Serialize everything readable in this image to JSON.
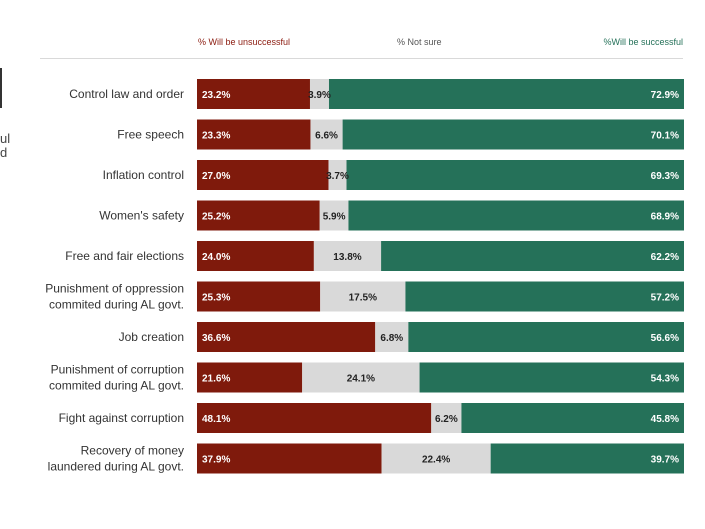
{
  "legend": {
    "unsuccessful": "% Will be unsuccessful",
    "not_sure": "% Not sure",
    "successful": "%Will be successful"
  },
  "edge_fragment": [
    "ul",
    "d"
  ],
  "colors": {
    "unsuccessful": "#7f1a0c",
    "not_sure": "#d9d9d9",
    "successful": "#257159",
    "unsuccessful_legend": "#8b1a0e",
    "successful_legend": "#257159"
  },
  "chart_data": {
    "type": "bar",
    "orientation": "horizontal",
    "stacked": true,
    "percent_of_total": true,
    "categories": [
      "Control law and order",
      "Free speech",
      "Inflation control",
      "Women's safety",
      "Free and fair elections",
      "Punishment of oppression\ncommited during AL govt.",
      "Job creation",
      "Punishment of corruption\ncommited during AL govt.",
      "Fight against corruption",
      "Recovery of money\nlaundered during AL govt."
    ],
    "series": [
      {
        "name": "% Will be unsuccessful",
        "values": [
          23.2,
          23.3,
          27.0,
          25.2,
          24.0,
          25.3,
          36.6,
          21.6,
          48.1,
          37.9
        ]
      },
      {
        "name": "% Not sure",
        "values": [
          3.9,
          6.6,
          3.7,
          5.9,
          13.8,
          17.5,
          6.8,
          24.1,
          6.2,
          22.4
        ]
      },
      {
        "name": "%Will be successful",
        "values": [
          72.9,
          70.1,
          69.3,
          68.9,
          62.2,
          57.2,
          56.6,
          54.3,
          45.8,
          39.7
        ]
      }
    ],
    "labels": [
      [
        "23.2%",
        "3.9%",
        "72.9%"
      ],
      [
        "23.3%",
        "6.6%",
        "70.1%"
      ],
      [
        "27.0%",
        "3.7%",
        "69.3%"
      ],
      [
        "25.2%",
        "5.9%",
        "68.9%"
      ],
      [
        "24.0%",
        "13.8%",
        "62.2%"
      ],
      [
        "25.3%",
        "17.5%",
        "57.2%"
      ],
      [
        "36.6%",
        "6.8%",
        "56.6%"
      ],
      [
        "21.6%",
        "24.1%",
        "54.3%"
      ],
      [
        "48.1%",
        "6.2%",
        "45.8%"
      ],
      [
        "37.9%",
        "22.4%",
        "39.7%"
      ]
    ],
    "xlim": [
      0,
      100
    ],
    "legend_position": "top",
    "grid": false
  }
}
